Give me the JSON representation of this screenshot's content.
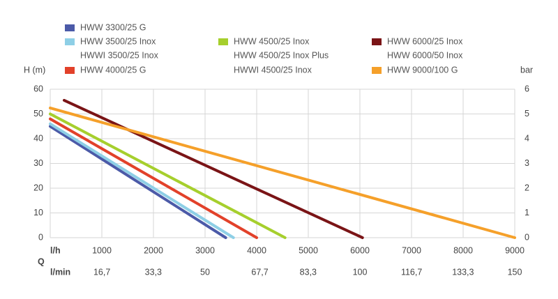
{
  "chart_data": {
    "type": "line",
    "y_label": "H (m)",
    "y2_label": "bar",
    "x_label": "l/h",
    "x2_label": "l/min",
    "x_symbol": "Q",
    "series": [
      {
        "name": "HWW 3300/25 G",
        "color": "#4b5aa8",
        "x": [
          0,
          3400
        ],
        "values": [
          45,
          0
        ]
      },
      {
        "name": "HWW 3500/25 Inox",
        "aliases": [
          "HWWI 3500/25 Inox"
        ],
        "color": "#8ecfe6",
        "x": [
          0,
          3550
        ],
        "values": [
          46,
          0
        ]
      },
      {
        "name": "HWW 4000/25 G",
        "color": "#e2412a",
        "x": [
          0,
          4000
        ],
        "values": [
          48,
          0
        ]
      },
      {
        "name": "HWW 4500/25 Inox",
        "aliases": [
          "HWW 4500/25 Inox Plus",
          "HWWI 4500/25 Inox"
        ],
        "color": "#a6cf2d",
        "x": [
          0,
          4550
        ],
        "values": [
          50,
          0
        ]
      },
      {
        "name": "HWW 6000/25 Inox",
        "aliases": [
          "HWW 6000/50 Inox"
        ],
        "color": "#7a1416",
        "x": [
          270,
          6050
        ],
        "values": [
          55.5,
          0
        ]
      },
      {
        "name": "HWW 9000/100 G",
        "color": "#f5a02a",
        "x": [
          0,
          9000
        ],
        "values": [
          52.4,
          0
        ]
      }
    ],
    "xlim": [
      0,
      9000
    ],
    "xticks": [
      1000,
      2000,
      3000,
      4000,
      5000,
      6000,
      7000,
      8000,
      9000
    ],
    "x2lim": [
      0,
      150
    ],
    "x2ticks": [
      {
        "value": 16.7,
        "label": "16,7"
      },
      {
        "value": 33.3,
        "label": "33,3"
      },
      50,
      {
        "value": 67.7,
        "label": "67,7"
      },
      {
        "value": 83.3,
        "label": "83,3"
      },
      100,
      {
        "value": 116.7,
        "label": "116,7"
      },
      {
        "value": 133.3,
        "label": "133,3"
      },
      150
    ],
    "ylim": [
      0,
      60
    ],
    "yticks": [
      0,
      10,
      20,
      30,
      40,
      50,
      60
    ],
    "y2lim": [
      0,
      6
    ],
    "y2ticks": [
      0,
      1,
      2,
      3,
      4,
      5,
      6
    ],
    "grid": true
  }
}
